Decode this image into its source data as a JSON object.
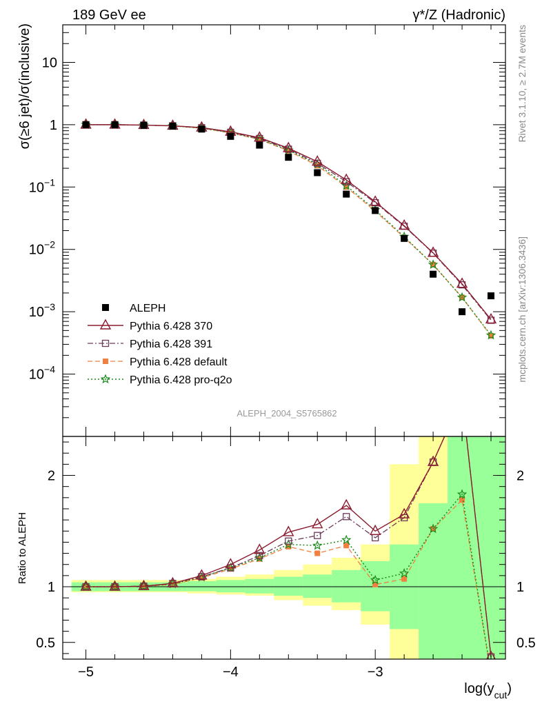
{
  "header": {
    "left": "189 GeV ee",
    "right": "γ*/Z (Hadronic)"
  },
  "side": {
    "rivet": "Rivet 3.1.10, ≥ 2.7M events",
    "mcplots": "mcplots.cern.ch [arXiv:1306.3436]"
  },
  "watermark": "ALEPH_2004_S5765862",
  "colors": {
    "p370": "#8b1a2e",
    "p391": "#6b3a5a",
    "def": "#f08040",
    "proq2o": "#1a8a1a",
    "band_yellow": "#ffff99",
    "band_green": "#99ff99"
  },
  "chart_data": {
    "type": "line",
    "xlabel": "log(y_cut)",
    "xlabel_main": "log(y",
    "xlabel_sub": "cut",
    "xlabel_close": ")",
    "xlim": [
      -5.16,
      -2.1
    ],
    "main": {
      "ylabel": "σ(≥6 jet)/σ(inclusive)",
      "yscale": "log",
      "ylim": [
        1e-05,
        40
      ],
      "yticks": [
        {
          "v": 10,
          "base": "10",
          "exp": ""
        },
        {
          "v": 1,
          "base": "1",
          "exp": ""
        },
        {
          "v": 0.1,
          "base": "10",
          "exp": "−1"
        },
        {
          "v": 0.01,
          "base": "10",
          "exp": "−2"
        },
        {
          "v": 0.001,
          "base": "10",
          "exp": "−3"
        },
        {
          "v": 0.0001,
          "base": "10",
          "exp": "−4"
        }
      ]
    },
    "ratio": {
      "ylabel": "Ratio to ALEPH",
      "ylim": [
        0.35,
        2.35
      ],
      "yticks": [
        {
          "v": 0.5,
          "label": "0.5"
        },
        {
          "v": 1,
          "label": "1"
        },
        {
          "v": 2,
          "label": "2"
        }
      ]
    },
    "xticks": [
      {
        "v": -5,
        "label": "−5"
      },
      {
        "v": -4,
        "label": "−4"
      },
      {
        "v": -3,
        "label": "−3"
      }
    ],
    "x": [
      -5.0,
      -4.8,
      -4.6,
      -4.4,
      -4.2,
      -4.0,
      -3.8,
      -3.6,
      -3.4,
      -3.2,
      -3.0,
      -2.8,
      -2.6,
      -2.4,
      -2.2
    ],
    "bin_edges": [
      -5.1,
      -4.9,
      -4.7,
      -4.5,
      -4.3,
      -4.1,
      -3.9,
      -3.7,
      -3.5,
      -3.3,
      -3.1,
      -2.9,
      -2.7,
      -2.5,
      -2.3,
      -2.1
    ],
    "data": [
      1.0,
      1.0,
      0.98,
      0.95,
      0.85,
      0.65,
      0.47,
      0.3,
      0.17,
      0.077,
      0.042,
      0.015,
      0.004,
      0.001,
      0.0018
    ],
    "legend": [
      {
        "key": "data",
        "label": "ALEPH"
      },
      {
        "key": "p370",
        "label": "Pythia 6.428 370"
      },
      {
        "key": "p391",
        "label": "Pythia 6.428 391"
      },
      {
        "key": "def",
        "label": "Pythia 6.428 default"
      },
      {
        "key": "proq2o",
        "label": "Pythia 6.428 pro-q2o"
      }
    ],
    "series": [
      {
        "key": "p370",
        "name": "Pythia 6.428 370",
        "values": [
          1.0,
          1.0,
          0.985,
          0.96,
          0.9,
          0.77,
          0.62,
          0.42,
          0.255,
          0.13,
          0.058,
          0.024,
          0.0088,
          0.0028,
          0.00075
        ],
        "ratio": [
          1.0,
          1.0,
          1.005,
          1.03,
          1.1,
          1.2,
          1.33,
          1.49,
          1.56,
          1.73,
          1.5,
          1.65,
          2.12,
          2.7,
          0.37
        ]
      },
      {
        "key": "p391",
        "name": "Pythia 6.428 391",
        "values": [
          1.0,
          1.0,
          0.985,
          0.96,
          0.895,
          0.755,
          0.6,
          0.405,
          0.24,
          0.122,
          0.056,
          0.0235,
          0.0087,
          0.0027,
          0.00073
        ],
        "ratio": [
          1.0,
          1.0,
          1.005,
          1.03,
          1.09,
          1.17,
          1.28,
          1.41,
          1.46,
          1.63,
          1.44,
          1.62,
          2.12,
          2.7,
          0.37
        ]
      },
      {
        "key": "def",
        "name": "Pythia 6.428 default",
        "values": [
          1.0,
          1.0,
          0.983,
          0.955,
          0.88,
          0.74,
          0.58,
          0.38,
          0.22,
          0.1,
          0.041,
          0.0155,
          0.0057,
          0.0017,
          0.00041
        ],
        "ratio": [
          1.0,
          1.0,
          1.003,
          1.02,
          1.08,
          1.16,
          1.25,
          1.36,
          1.3,
          1.37,
          1.02,
          1.07,
          1.52,
          1.78,
          0.22
        ]
      },
      {
        "key": "proq2o",
        "name": "Pythia 6.428 pro-q2o",
        "values": [
          1.0,
          1.0,
          0.985,
          0.957,
          0.882,
          0.745,
          0.59,
          0.39,
          0.232,
          0.105,
          0.043,
          0.016,
          0.0057,
          0.0017,
          0.00042
        ],
        "ratio": [
          1.0,
          1.0,
          1.005,
          1.025,
          1.085,
          1.17,
          1.26,
          1.38,
          1.37,
          1.42,
          1.06,
          1.12,
          1.52,
          1.83,
          0.22
        ]
      }
    ],
    "bands": {
      "yellow": [
        [
          0.95,
          1.06
        ],
        [
          0.95,
          1.06
        ],
        [
          0.95,
          1.06
        ],
        [
          0.95,
          1.06
        ],
        [
          0.94,
          1.07
        ],
        [
          0.93,
          1.09
        ],
        [
          0.92,
          1.11
        ],
        [
          0.88,
          1.15
        ],
        [
          0.83,
          1.2
        ],
        [
          0.79,
          1.26
        ],
        [
          0.66,
          1.38
        ],
        [
          0.35,
          2.1
        ],
        [
          0.35,
          2.35
        ],
        [
          0.35,
          2.35
        ],
        [
          0.35,
          2.35
        ]
      ],
      "green": [
        [
          0.96,
          1.04
        ],
        [
          0.96,
          1.04
        ],
        [
          0.96,
          1.04
        ],
        [
          0.96,
          1.04
        ],
        [
          0.96,
          1.05
        ],
        [
          0.95,
          1.06
        ],
        [
          0.94,
          1.07
        ],
        [
          0.92,
          1.09
        ],
        [
          0.9,
          1.11
        ],
        [
          0.86,
          1.15
        ],
        [
          0.78,
          1.23
        ],
        [
          0.62,
          1.38
        ],
        [
          0.35,
          1.75
        ],
        [
          0.35,
          2.35
        ],
        [
          0.35,
          2.35
        ]
      ]
    }
  }
}
